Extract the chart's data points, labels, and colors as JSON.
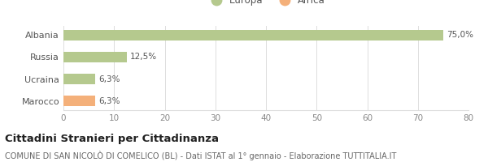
{
  "categories": [
    "Albania",
    "Russia",
    "Ucraina",
    "Marocco"
  ],
  "values": [
    75.0,
    12.5,
    6.3,
    6.3
  ],
  "labels": [
    "75,0%",
    "12,5%",
    "6,3%",
    "6,3%"
  ],
  "bar_colors": [
    "#b5c98e",
    "#b5c98e",
    "#b5c98e",
    "#f4b07a"
  ],
  "legend_entries": [
    {
      "label": "Europa",
      "color": "#b5c98e"
    },
    {
      "label": "Africa",
      "color": "#f4b07a"
    }
  ],
  "xlim": [
    0,
    80
  ],
  "xticks": [
    0,
    10,
    20,
    30,
    40,
    50,
    60,
    70,
    80
  ],
  "title": "Cittadini Stranieri per Cittadinanza",
  "subtitle": "COMUNE DI SAN NICOLÒ DI COMELICO (BL) - Dati ISTAT al 1° gennaio - Elaborazione TUTTITALIA.IT",
  "background_color": "#ffffff",
  "grid_color": "#dddddd",
  "bar_height": 0.5,
  "title_fontsize": 9.5,
  "subtitle_fontsize": 7,
  "label_fontsize": 7.5,
  "tick_fontsize": 7.5,
  "legend_fontsize": 8.5,
  "ytick_fontsize": 8,
  "legend_marker_size": 10
}
